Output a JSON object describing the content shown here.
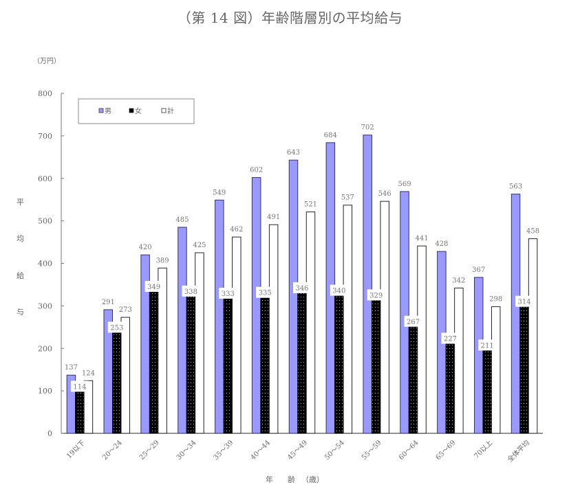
{
  "title": "（第 14 図）年齢階層別の平均給与",
  "y_unit": "（万円）",
  "y_axis_label_chars": [
    "平",
    "均",
    "給",
    "与"
  ],
  "x_axis_label": [
    "年",
    "齢",
    "（歳）"
  ],
  "legend": [
    {
      "label": "男",
      "color": "#9999ff"
    },
    {
      "label": "女",
      "color": "#000000"
    },
    {
      "label": "計",
      "color": "#ffffff"
    }
  ],
  "chart_data": {
    "type": "bar",
    "title": "（第 14 図）年齢階層別の平均給与",
    "xlabel": "年 齢（歳）",
    "ylabel": "平均給与（万円）",
    "ylim": [
      0,
      800
    ],
    "yticks": [
      0,
      100,
      200,
      300,
      400,
      500,
      600,
      700,
      800
    ],
    "grid": false,
    "legend_position": "top-left inside",
    "categories": [
      "19以下",
      "20～24",
      "25～29",
      "30～34",
      "35～39",
      "40～44",
      "45～49",
      "50～54",
      "55～59",
      "60～64",
      "65～69",
      "70以上",
      "全体平均"
    ],
    "series": [
      {
        "name": "男",
        "color": "#9999ff",
        "values": [
          137,
          291,
          420,
          485,
          549,
          602,
          643,
          684,
          702,
          569,
          428,
          367,
          563
        ]
      },
      {
        "name": "女",
        "color": "#000000",
        "pattern": "dotted",
        "values": [
          114,
          253,
          349,
          338,
          333,
          335,
          346,
          340,
          329,
          267,
          227,
          211,
          314
        ]
      },
      {
        "name": "計",
        "color": "#ffffff",
        "values": [
          124,
          273,
          389,
          425,
          462,
          491,
          521,
          537,
          546,
          441,
          342,
          298,
          458
        ]
      }
    ]
  }
}
